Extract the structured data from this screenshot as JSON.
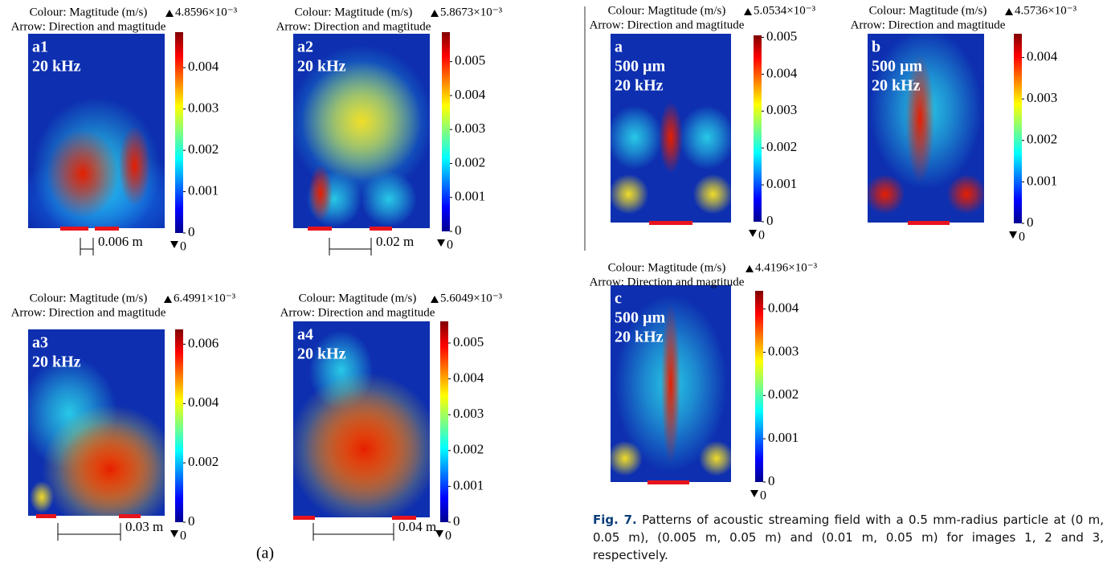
{
  "panels": [
    {
      "label": "a1",
      "text": [
        "20 kHz"
      ],
      "header": [
        "Colour: Magtitude (m/s)",
        "Arrow: Direction and magtitude"
      ],
      "max": {
        "value": 0.0048596,
        "label": "4.8596×10⁻³"
      },
      "min": 0,
      "ticks": [
        0,
        0.001,
        0.002,
        0.003,
        0.004
      ],
      "dimension": "0.006 m"
    },
    {
      "label": "a2",
      "text": [
        "20 kHz"
      ],
      "header": [
        "Colour: Magtitude (m/s)",
        "Arrow: Direction and magtitude"
      ],
      "max": {
        "value": 0.0058673,
        "label": "5.8673×10⁻³"
      },
      "min": 0,
      "ticks": [
        0,
        0.001,
        0.002,
        0.003,
        0.004,
        0.005
      ],
      "dimension": "0.02 m"
    },
    {
      "label": "a3",
      "text": [
        "20 kHz"
      ],
      "header": [
        "Colour: Magtitude (m/s)",
        "Arrow: Direction and magtitude"
      ],
      "max": {
        "value": 0.0064991,
        "label": "6.4991×10⁻³"
      },
      "min": 0,
      "ticks": [
        0,
        0.002,
        0.004,
        0.006
      ],
      "dimension": "0.03 m"
    },
    {
      "label": "a4",
      "text": [
        "20 kHz"
      ],
      "header": [
        "Colour: Magtitude (m/s)",
        "Arrow: Direction and magtitude"
      ],
      "max": {
        "value": 0.0056049,
        "label": "5.6049×10⁻³"
      },
      "min": 0,
      "ticks": [
        0,
        0.001,
        0.002,
        0.003,
        0.004,
        0.005
      ],
      "dimension": "0.04 m"
    },
    {
      "label": "a",
      "text": [
        "500 µm",
        "20 kHz"
      ],
      "header": [
        "Colour: Magtitude (m/s)",
        "Arrow: Direction and magtitude"
      ],
      "max": {
        "value": 0.0050534,
        "label": "5.0534×10⁻³"
      },
      "min": 0,
      "ticks": [
        0,
        0.001,
        0.002,
        0.003,
        0.004,
        0.005
      ]
    },
    {
      "label": "b",
      "text": [
        "500 µm",
        "20 kHz"
      ],
      "header": [
        "Colour: Magtitude (m/s)",
        "Arrow: Direction and magtitude"
      ],
      "max": {
        "value": 0.0045736,
        "label": "4.5736×10⁻³"
      },
      "min": 0,
      "ticks": [
        0,
        0.001,
        0.002,
        0.003,
        0.004
      ]
    },
    {
      "label": "c",
      "text": [
        "500 µm",
        "20 kHz"
      ],
      "header": [
        "Colour: Magtitude (m/s)",
        "Arrow: Direction and magtitude"
      ],
      "max": {
        "value": 0.0044196,
        "label": "4.4196×10⁻³"
      },
      "min": 0,
      "ticks": [
        0,
        0.001,
        0.002,
        0.003,
        0.004
      ]
    }
  ],
  "subfigure_label": "(a)",
  "caption": {
    "label": "Fig. 7.",
    "text": "Patterns of acoustic streaming field with a 0.5 mm-radius particle at (0 m, 0.05 m), (0.005 m, 0.05 m) and (0.01 m, 0.05 m) for images 1, 2 and 3, respectively."
  }
}
